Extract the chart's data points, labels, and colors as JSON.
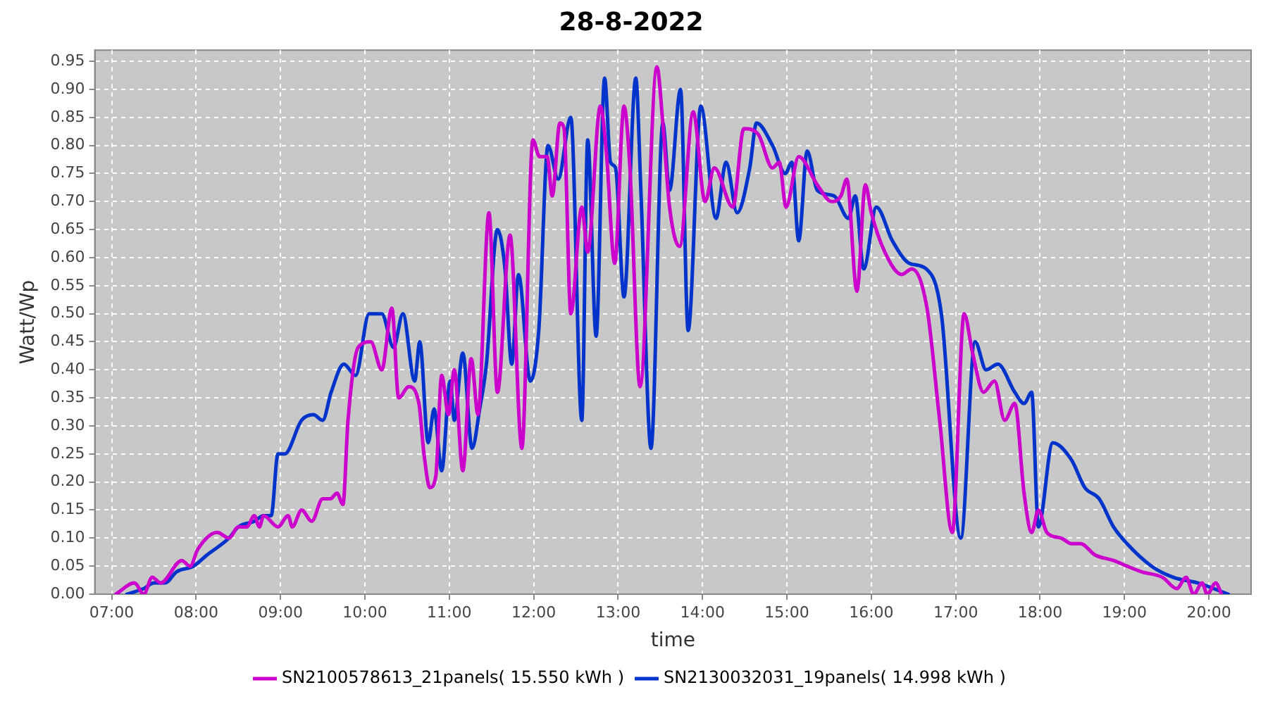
{
  "chart_data": {
    "type": "line",
    "title": "28-8-2022",
    "xlabel": "time",
    "ylabel": "Watt/Wp",
    "xlim": [
      6.8,
      20.5
    ],
    "xticks": [
      {
        "value": 7,
        "label": "07:00"
      },
      {
        "value": 8,
        "label": "08:00"
      },
      {
        "value": 9,
        "label": "09:00"
      },
      {
        "value": 10,
        "label": "10:00"
      },
      {
        "value": 11,
        "label": "11:00"
      },
      {
        "value": 12,
        "label": "12:00"
      },
      {
        "value": 13,
        "label": "13:00"
      },
      {
        "value": 14,
        "label": "14:00"
      },
      {
        "value": 15,
        "label": "15:00"
      },
      {
        "value": 16,
        "label": "16:00"
      },
      {
        "value": 17,
        "label": "17:00"
      },
      {
        "value": 18,
        "label": "18:00"
      },
      {
        "value": 19,
        "label": "19:00"
      },
      {
        "value": 20,
        "label": "20:00"
      }
    ],
    "ylim": [
      0,
      0.97
    ],
    "yticks": [
      {
        "value": 0,
        "label": "0.00"
      },
      {
        "value": 0.05,
        "label": "0.05"
      },
      {
        "value": 0.1,
        "label": "0.10"
      },
      {
        "value": 0.15,
        "label": "0.15"
      },
      {
        "value": 0.2,
        "label": "0.20"
      },
      {
        "value": 0.25,
        "label": "0.25"
      },
      {
        "value": 0.3,
        "label": "0.30"
      },
      {
        "value": 0.35,
        "label": "0.35"
      },
      {
        "value": 0.4,
        "label": "0.40"
      },
      {
        "value": 0.45,
        "label": "0.45"
      },
      {
        "value": 0.5,
        "label": "0.50"
      },
      {
        "value": 0.55,
        "label": "0.55"
      },
      {
        "value": 0.6,
        "label": "0.60"
      },
      {
        "value": 0.65,
        "label": "0.65"
      },
      {
        "value": 0.7,
        "label": "0.70"
      },
      {
        "value": 0.75,
        "label": "0.75"
      },
      {
        "value": 0.8,
        "label": "0.80"
      },
      {
        "value": 0.85,
        "label": "0.85"
      },
      {
        "value": 0.9,
        "label": "0.90"
      },
      {
        "value": 0.95,
        "label": "0.95"
      }
    ],
    "grid": true,
    "legend": "bottom",
    "marker": "none",
    "line_style": "solid",
    "series": [
      {
        "name": "SN2100578613_21panels( 15.550 kWh )",
        "color": "#cc00cc",
        "x": [
          7.05,
          7.27,
          7.38,
          7.48,
          7.58,
          7.83,
          7.93,
          8.02,
          8.25,
          8.39,
          8.5,
          8.6,
          8.69,
          8.75,
          8.8,
          8.97,
          9.09,
          9.14,
          9.25,
          9.37,
          9.5,
          9.59,
          9.67,
          9.74,
          9.8,
          9.92,
          10.07,
          10.2,
          10.32,
          10.4,
          10.52,
          10.64,
          10.7,
          10.77,
          10.84,
          10.91,
          10.99,
          11.06,
          11.16,
          11.26,
          11.34,
          11.47,
          11.57,
          11.72,
          11.86,
          11.99,
          12.07,
          12.16,
          12.22,
          12.31,
          12.36,
          12.44,
          12.57,
          12.64,
          12.79,
          12.86,
          12.96,
          13.07,
          13.14,
          13.26,
          13.46,
          13.53,
          13.61,
          13.73,
          13.89,
          14.03,
          14.14,
          14.36,
          14.49,
          14.66,
          14.83,
          14.91,
          14.99,
          15.14,
          15.36,
          15.53,
          15.64,
          15.71,
          15.83,
          15.93,
          16.0,
          16.16,
          16.36,
          16.48,
          16.66,
          16.81,
          16.96,
          17.1,
          17.2,
          17.33,
          17.46,
          17.58,
          17.7,
          17.81,
          17.9,
          17.98,
          18.08,
          18.25,
          18.37,
          18.48,
          18.65,
          18.87,
          19.03,
          19.2,
          19.45,
          19.62,
          19.73,
          19.82,
          19.92,
          19.98,
          20.08,
          20.15
        ],
        "values": [
          0,
          0.02,
          0,
          0.03,
          0.02,
          0.06,
          0.05,
          0.08,
          0.11,
          0.1,
          0.12,
          0.12,
          0.14,
          0.12,
          0.14,
          0.12,
          0.14,
          0.12,
          0.15,
          0.13,
          0.17,
          0.17,
          0.18,
          0.16,
          0.31,
          0.44,
          0.45,
          0.4,
          0.51,
          0.35,
          0.37,
          0.34,
          0.25,
          0.19,
          0.21,
          0.39,
          0.32,
          0.4,
          0.22,
          0.42,
          0.32,
          0.68,
          0.36,
          0.64,
          0.26,
          0.81,
          0.78,
          0.78,
          0.71,
          0.84,
          0.83,
          0.5,
          0.69,
          0.61,
          0.87,
          0.79,
          0.59,
          0.87,
          0.76,
          0.37,
          0.94,
          0.84,
          0.69,
          0.62,
          0.86,
          0.7,
          0.76,
          0.69,
          0.83,
          0.82,
          0.76,
          0.77,
          0.69,
          0.78,
          0.73,
          0.7,
          0.71,
          0.74,
          0.54,
          0.73,
          0.68,
          0.61,
          0.57,
          0.58,
          0.51,
          0.31,
          0.11,
          0.5,
          0.43,
          0.36,
          0.38,
          0.31,
          0.34,
          0.18,
          0.11,
          0.15,
          0.11,
          0.1,
          0.09,
          0.09,
          0.07,
          0.06,
          0.05,
          0.04,
          0.03,
          0.01,
          0.03,
          0,
          0.02,
          0,
          0.02,
          0
        ]
      },
      {
        "name": "SN2130032031_19panels( 14.998 kWh )",
        "color": "#0033cc",
        "x": [
          7.18,
          7.38,
          7.5,
          7.63,
          7.77,
          7.97,
          8.13,
          8.39,
          8.5,
          8.69,
          8.8,
          8.89,
          8.97,
          9.05,
          9.25,
          9.39,
          9.5,
          9.6,
          9.75,
          9.89,
          10.05,
          10.2,
          10.34,
          10.45,
          10.59,
          10.65,
          10.75,
          10.82,
          10.91,
          11.01,
          11.06,
          11.16,
          11.27,
          11.36,
          11.44,
          11.57,
          11.66,
          11.74,
          11.82,
          11.96,
          12.06,
          12.17,
          12.29,
          12.44,
          12.57,
          12.64,
          12.74,
          12.84,
          12.91,
          12.97,
          13.07,
          13.21,
          13.27,
          13.39,
          13.53,
          13.61,
          13.74,
          13.83,
          13.98,
          14.16,
          14.28,
          14.41,
          14.56,
          14.64,
          14.83,
          14.98,
          15.06,
          15.14,
          15.24,
          15.36,
          15.56,
          15.73,
          15.81,
          15.91,
          16.06,
          16.25,
          16.45,
          16.65,
          16.83,
          17.06,
          17.23,
          17.36,
          17.5,
          17.7,
          17.81,
          17.9,
          17.98,
          18.15,
          18.37,
          18.53,
          18.7,
          18.87,
          19.03,
          19.32,
          19.58,
          19.87,
          20.23
        ],
        "values": [
          0,
          0.01,
          0.02,
          0.02,
          0.04,
          0.05,
          0.07,
          0.1,
          0.12,
          0.13,
          0.14,
          0.14,
          0.25,
          0.25,
          0.31,
          0.32,
          0.31,
          0.36,
          0.41,
          0.39,
          0.5,
          0.5,
          0.44,
          0.5,
          0.38,
          0.45,
          0.27,
          0.33,
          0.22,
          0.38,
          0.31,
          0.43,
          0.26,
          0.33,
          0.41,
          0.65,
          0.58,
          0.41,
          0.57,
          0.38,
          0.47,
          0.8,
          0.74,
          0.85,
          0.31,
          0.81,
          0.46,
          0.92,
          0.77,
          0.76,
          0.53,
          0.92,
          0.72,
          0.26,
          0.84,
          0.72,
          0.9,
          0.47,
          0.87,
          0.67,
          0.77,
          0.68,
          0.76,
          0.84,
          0.8,
          0.75,
          0.77,
          0.63,
          0.79,
          0.72,
          0.71,
          0.67,
          0.71,
          0.58,
          0.69,
          0.63,
          0.59,
          0.58,
          0.5,
          0.1,
          0.45,
          0.4,
          0.41,
          0.36,
          0.34,
          0.36,
          0.12,
          0.27,
          0.24,
          0.19,
          0.17,
          0.12,
          0.09,
          0.05,
          0.03,
          0.02,
          0
        ]
      }
    ]
  }
}
